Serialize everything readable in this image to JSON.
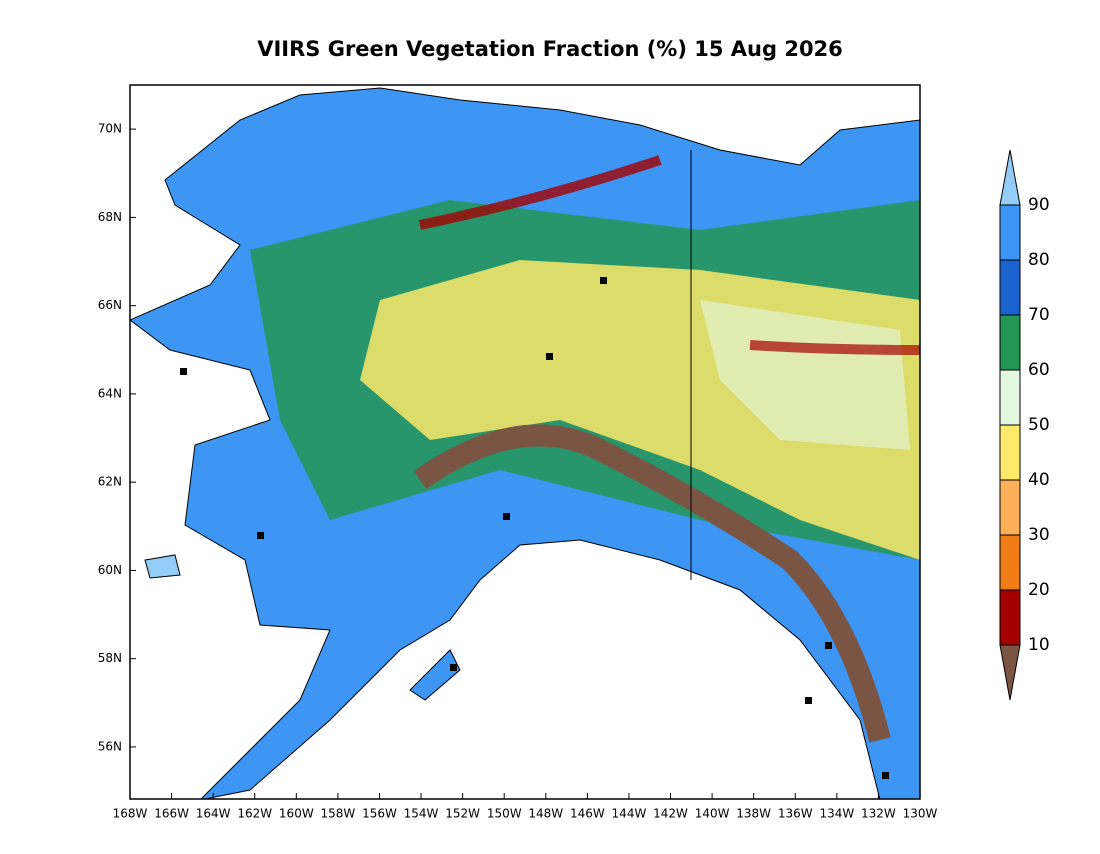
{
  "title": "VIIRS Green Vegetation Fraction (%) 15 Aug 2026",
  "map": {
    "lon_range": [
      -168,
      -130
    ],
    "lat_range": [
      54.82,
      71.0
    ],
    "lon_ticks": [
      {
        "value": -168,
        "label": "168W"
      },
      {
        "value": -166,
        "label": "166W"
      },
      {
        "value": -164,
        "label": "164W"
      },
      {
        "value": -162,
        "label": "162W"
      },
      {
        "value": -160,
        "label": "160W"
      },
      {
        "value": -158,
        "label": "158W"
      },
      {
        "value": -156,
        "label": "156W"
      },
      {
        "value": -154,
        "label": "154W"
      },
      {
        "value": -152,
        "label": "152W"
      },
      {
        "value": -150,
        "label": "150W"
      },
      {
        "value": -148,
        "label": "148W"
      },
      {
        "value": -146,
        "label": "146W"
      },
      {
        "value": -144,
        "label": "144W"
      },
      {
        "value": -142,
        "label": "142W"
      },
      {
        "value": -140,
        "label": "140W"
      },
      {
        "value": -138,
        "label": "138W"
      },
      {
        "value": -136,
        "label": "136W"
      },
      {
        "value": -134,
        "label": "134W"
      },
      {
        "value": -132,
        "label": "132W"
      },
      {
        "value": -130,
        "label": "130W"
      }
    ],
    "lat_ticks": [
      {
        "value": 56,
        "label": "56N"
      },
      {
        "value": 58,
        "label": "58N"
      },
      {
        "value": 60,
        "label": "60N"
      },
      {
        "value": 62,
        "label": "62N"
      },
      {
        "value": 64,
        "label": "64N"
      },
      {
        "value": 66,
        "label": "66N"
      },
      {
        "value": 68,
        "label": "68N"
      },
      {
        "value": 70,
        "label": "70N"
      }
    ]
  },
  "colorbar": {
    "levels": [
      10,
      20,
      30,
      40,
      50,
      60,
      70,
      80,
      90
    ],
    "colors": [
      "#7b5544",
      "#a50000",
      "#f07c15",
      "#ffae5a",
      "#fde96a",
      "#e4f7e1",
      "#239654",
      "#1b62cf",
      "#3d96f3",
      "#93cdf7"
    ]
  }
}
